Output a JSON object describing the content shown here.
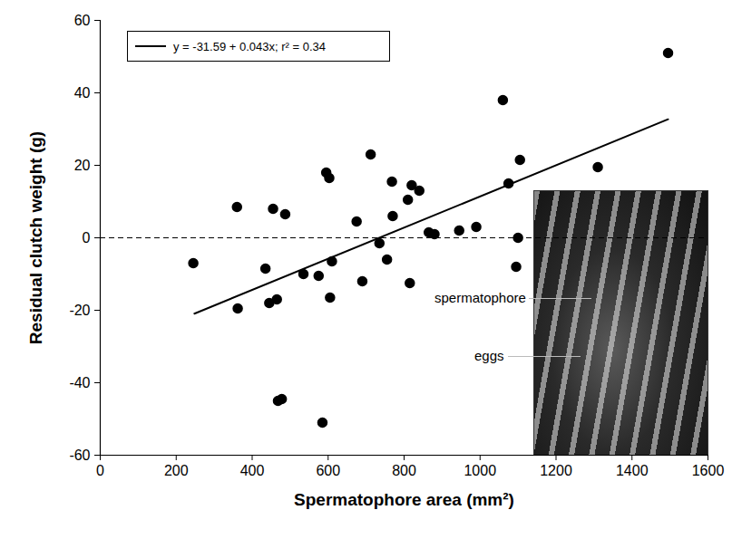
{
  "chart_data": {
    "type": "scatter",
    "x_label": "Spermatophore area (mm²)",
    "y_label": "Residual clutch weight (g)",
    "xlim": [
      0,
      1600
    ],
    "xticks": [
      0,
      200,
      400,
      600,
      800,
      1000,
      1200,
      1400,
      1600
    ],
    "ylim": [
      -60,
      60
    ],
    "yticks": [
      -60,
      -40,
      -20,
      0,
      20,
      40,
      60
    ],
    "legend": "top-left",
    "reference_line": {
      "y": 0,
      "line_style": "dashed"
    },
    "annotations": [
      "spermatophore",
      "eggs"
    ],
    "series": [
      {
        "type": "scatter",
        "color": "#000000",
        "marker": "circle",
        "x": [
          245,
          360,
          362,
          435,
          445,
          455,
          465,
          468,
          478,
          487,
          535,
          575,
          585,
          595,
          603,
          605,
          610,
          675,
          690,
          712,
          735,
          755,
          768,
          770,
          810,
          815,
          820,
          840,
          865,
          880,
          945,
          990,
          1060,
          1075,
          1095,
          1100,
          1105,
          1310,
          1495
        ],
        "values": [
          -7,
          8.5,
          -19.5,
          -8.5,
          -18,
          8,
          -17,
          -45,
          -44.5,
          6.5,
          -10,
          -10.5,
          -51,
          18,
          16.5,
          -16.5,
          -6.5,
          4.5,
          -12,
          23,
          -1.5,
          -6,
          15.5,
          6,
          10.5,
          -12.5,
          14.5,
          13,
          1.5,
          1,
          2,
          3,
          38,
          15,
          -8,
          0,
          21.5,
          19.5,
          51
        ]
      },
      {
        "name": "y = -31.59 + 0.043x; r² = 0.34",
        "type": "line",
        "color": "#000000",
        "line_style": "solid",
        "x": [
          248,
          1495
        ],
        "values": [
          -20.93,
          32.7
        ]
      }
    ]
  }
}
